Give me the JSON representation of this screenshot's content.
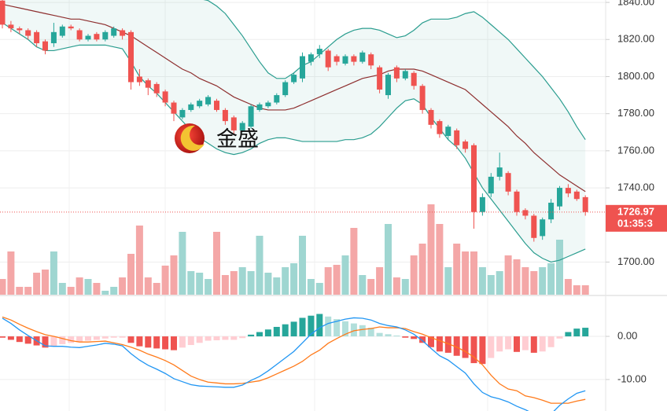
{
  "logo_text": "金盛",
  "chart_data": [
    {
      "type": "candlestick",
      "open": [
        1841,
        1828,
        1826,
        1825,
        1824,
        1819,
        1818,
        1822,
        1827,
        1825,
        1820,
        1823,
        1820,
        1822,
        1825,
        1824,
        1800,
        1798,
        1796,
        1792,
        1786,
        1778,
        1782,
        1784,
        1785,
        1787,
        1782,
        1778,
        1771,
        1773,
        1782,
        1784,
        1786,
        1790,
        1797,
        1799,
        1808,
        1812,
        1814,
        1811,
        1807,
        1811,
        1808,
        1812,
        1805,
        1790,
        1805,
        1799,
        1802,
        1795,
        1782,
        1776,
        1768,
        1771,
        1765,
        1763,
        1727,
        1737,
        1746,
        1748,
        1738,
        1728,
        1725,
        1714,
        1723,
        1730,
        1740,
        1738,
        1735
      ],
      "high": [
        1842,
        1830,
        1827,
        1826,
        1825,
        1820,
        1829,
        1828,
        1828,
        1826,
        1823,
        1824,
        1825,
        1827,
        1826,
        1825,
        1804,
        1799,
        1797,
        1793,
        1787,
        1783,
        1786,
        1788,
        1790,
        1788,
        1783,
        1779,
        1776,
        1785,
        1786,
        1787,
        1791,
        1798,
        1802,
        1813,
        1813,
        1817,
        1815,
        1812,
        1812,
        1812,
        1814,
        1813,
        1806,
        1802,
        1806,
        1804,
        1803,
        1796,
        1783,
        1777,
        1774,
        1772,
        1766,
        1764,
        1737,
        1748,
        1759,
        1749,
        1739,
        1729,
        1726,
        1724,
        1734,
        1741,
        1742,
        1739,
        1736
      ],
      "low": [
        1826,
        1824,
        1823,
        1820,
        1816,
        1812,
        1816,
        1821,
        1825,
        1819,
        1819,
        1819,
        1819,
        1821,
        1820,
        1793,
        1795,
        1790,
        1789,
        1784,
        1776,
        1777,
        1781,
        1783,
        1784,
        1781,
        1774,
        1769,
        1770,
        1772,
        1781,
        1783,
        1785,
        1789,
        1796,
        1797,
        1806,
        1810,
        1803,
        1806,
        1806,
        1806,
        1807,
        1804,
        1791,
        1788,
        1797,
        1798,
        1793,
        1780,
        1772,
        1767,
        1766,
        1761,
        1759,
        1718,
        1725,
        1735,
        1744,
        1736,
        1725,
        1723,
        1711,
        1712,
        1721,
        1728,
        1735,
        1733,
        1725
      ],
      "close": [
        1828,
        1826,
        1825,
        1822,
        1818,
        1814,
        1824,
        1827,
        1826,
        1820,
        1822,
        1820,
        1824,
        1826,
        1822,
        1797,
        1797,
        1794,
        1791,
        1786,
        1780,
        1782,
        1785,
        1787,
        1789,
        1782,
        1776,
        1771,
        1775,
        1784,
        1785,
        1786,
        1790,
        1797,
        1801,
        1811,
        1812,
        1815,
        1805,
        1808,
        1811,
        1808,
        1813,
        1806,
        1793,
        1801,
        1799,
        1803,
        1795,
        1782,
        1774,
        1769,
        1773,
        1763,
        1761,
        1727,
        1735,
        1746,
        1751,
        1738,
        1727,
        1725,
        1713,
        1723,
        1732,
        1740,
        1737,
        1734,
        1726.97
      ],
      "volume": [
        20,
        55,
        10,
        10,
        28,
        32,
        55,
        15,
        10,
        22,
        20,
        15,
        5,
        10,
        22,
        52,
        88,
        22,
        15,
        37,
        50,
        80,
        30,
        28,
        20,
        80,
        25,
        30,
        35,
        30,
        75,
        28,
        22,
        35,
        40,
        75,
        20,
        15,
        35,
        38,
        50,
        85,
        25,
        20,
        35,
        90,
        22,
        20,
        50,
        65,
        115,
        90,
        35,
        65,
        55,
        55,
        35,
        25,
        30,
        50,
        45,
        35,
        30,
        35,
        40,
        70,
        20,
        12,
        12
      ],
      "volume_ylim": [
        0,
        375
      ],
      "bands": {
        "upper": [
          1843,
          1843,
          1843,
          1843,
          1843,
          1843,
          1843,
          1843,
          1843,
          1843,
          1843,
          1843,
          1843,
          1843,
          1843,
          1843,
          1843,
          1843,
          1843,
          1843,
          1843,
          1843,
          1843,
          1842,
          1841,
          1838,
          1834,
          1828,
          1822,
          1815,
          1808,
          1802,
          1799,
          1799,
          1802,
          1806,
          1808,
          1812,
          1816,
          1820,
          1823,
          1825,
          1826,
          1826,
          1825,
          1823,
          1821,
          1822,
          1825,
          1829,
          1831,
          1831,
          1831,
          1832,
          1834,
          1835,
          1832,
          1828,
          1824,
          1820,
          1815,
          1810,
          1805,
          1800,
          1794,
          1788,
          1781,
          1773,
          1766
        ],
        "middle": [
          1839,
          1838,
          1837,
          1836,
          1835,
          1834,
          1833,
          1832,
          1831,
          1831,
          1830,
          1829,
          1828,
          1826,
          1824,
          1822,
          1819,
          1816,
          1813,
          1810,
          1807,
          1804,
          1802,
          1799,
          1797,
          1795,
          1792,
          1789,
          1787,
          1785,
          1783,
          1782,
          1782,
          1782,
          1783,
          1785,
          1787,
          1789,
          1791,
          1793,
          1795,
          1797,
          1799,
          1800,
          1801,
          1803,
          1804,
          1804,
          1804,
          1803,
          1801,
          1799,
          1797,
          1795,
          1793,
          1789,
          1785,
          1781,
          1777,
          1773,
          1768,
          1764,
          1759,
          1755,
          1751,
          1747,
          1744,
          1741,
          1738
        ],
        "lower": [
          1829,
          1826,
          1823,
          1820,
          1816,
          1814,
          1814,
          1815,
          1816,
          1817,
          1817,
          1817,
          1817,
          1816,
          1815,
          1808,
          1800,
          1795,
          1791,
          1786,
          1781,
          1776,
          1771,
          1767,
          1764,
          1761,
          1759,
          1758,
          1759,
          1761,
          1764,
          1766,
          1767,
          1767,
          1766,
          1765,
          1765,
          1765,
          1765,
          1765,
          1766,
          1766,
          1767,
          1769,
          1773,
          1778,
          1783,
          1787,
          1788,
          1785,
          1778,
          1772,
          1766,
          1762,
          1756,
          1748,
          1740,
          1734,
          1728,
          1722,
          1716,
          1710,
          1705,
          1702,
          1700,
          1701,
          1703,
          1705,
          1707
        ]
      },
      "up_color": "#26a69a",
      "down_color": "#ef5350",
      "volume_up_color": "#9fd6d1",
      "volume_down_color": "#f4a7a7",
      "band_color": "#2a9d8f",
      "middle_color": "#8e2f2f",
      "last_time": "01:35:3",
      "ylim": [
        1682.4,
        1841.3
      ],
      "yticks": [
        {
          "value": 1840,
          "label": "1840.00"
        },
        {
          "value": 1820,
          "label": "1820.00"
        },
        {
          "value": 1800,
          "label": "1800.00"
        },
        {
          "value": 1780,
          "label": "1780.00"
        },
        {
          "value": 1760,
          "label": "1760.00"
        },
        {
          "value": 1740,
          "label": "1740.00"
        },
        {
          "value": 1700,
          "label": "1700.00"
        }
      ],
      "grid": true
    },
    {
      "type": "macd",
      "histogram": [
        -0.3,
        -0.8,
        -1.3,
        -1.7,
        -2.1,
        -2.6,
        -2.3,
        -1.8,
        -1.5,
        -1.3,
        -1.0,
        -0.8,
        -0.5,
        -0.3,
        -0.3,
        -1.5,
        -2.3,
        -2.6,
        -2.8,
        -3.0,
        -3.2,
        -2.6,
        -2.0,
        -1.5,
        -1.0,
        -0.9,
        -0.8,
        -0.8,
        -0.4,
        0.4,
        1.0,
        1.6,
        2.2,
        2.8,
        3.4,
        4.3,
        4.8,
        5.2,
        4.6,
        4.0,
        3.5,
        3.0,
        2.6,
        2.0,
        0.8,
        0.5,
        0.2,
        -0.3,
        -0.6,
        -1.5,
        -2.5,
        -3.5,
        -3.8,
        -4.5,
        -5.0,
        -6.2,
        -6.4,
        -5.0,
        -3.5,
        -3.0,
        -3.6,
        -3.2,
        -3.8,
        -3.5,
        -2.5,
        -0.5,
        1.0,
        1.8,
        2.0
      ],
      "macd": [
        4.2,
        3.0,
        1.5,
        0.2,
        -1.0,
        -2.2,
        -2.3,
        -2.3,
        -2.5,
        -2.6,
        -2.3,
        -2.0,
        -1.6,
        -1.8,
        -2.2,
        -4.0,
        -5.5,
        -6.7,
        -7.6,
        -8.6,
        -9.8,
        -10.5,
        -11.2,
        -11.5,
        -11.6,
        -11.7,
        -11.8,
        -11.8,
        -11.3,
        -10.2,
        -9.3,
        -8.0,
        -6.5,
        -5.0,
        -3.5,
        -1.5,
        0.5,
        2.0,
        3.0,
        3.5,
        4.0,
        4.3,
        4.2,
        3.8,
        3.0,
        2.5,
        2.2,
        1.5,
        0.5,
        -1.0,
        -2.8,
        -4.5,
        -5.5,
        -7.0,
        -8.5,
        -11.0,
        -13.0,
        -14.0,
        -14.5,
        -15.2,
        -16.2,
        -17.0,
        -18.0,
        -18.3,
        -18.0,
        -16.0,
        -14.5,
        -13.2,
        -12.6
      ],
      "signal": [
        4.5,
        3.8,
        2.8,
        1.9,
        1.1,
        0.4,
        0.0,
        -0.5,
        -1.0,
        -1.3,
        -1.3,
        -1.2,
        -1.1,
        -1.5,
        -1.9,
        -2.5,
        -3.2,
        -4.1,
        -4.8,
        -5.6,
        -6.6,
        -7.9,
        -9.2,
        -10.0,
        -10.6,
        -10.8,
        -11.0,
        -11.0,
        -10.9,
        -10.6,
        -10.3,
        -9.6,
        -8.7,
        -7.8,
        -6.9,
        -5.8,
        -4.3,
        -3.2,
        -1.6,
        -0.5,
        0.5,
        1.3,
        1.6,
        1.8,
        2.2,
        2.0,
        2.0,
        1.8,
        1.1,
        0.5,
        -0.3,
        -1.0,
        -1.7,
        -2.5,
        -3.5,
        -4.8,
        -6.6,
        -9.0,
        -11.0,
        -12.2,
        -12.6,
        -13.8,
        -14.2,
        -14.8,
        -15.5,
        -15.5,
        -15.5,
        -15.0,
        -14.6
      ],
      "macd_color": "#2196f3",
      "signal_color": "#ff7a1a",
      "hist_colors": [
        "#26a69a",
        "#b2dfdb",
        "#ef5350",
        "#ffcdd2"
      ],
      "ylim": [
        -17.3,
        9.3
      ],
      "yticks": [
        {
          "value": 0,
          "label": "0.00"
        },
        {
          "value": -10,
          "label": "-10.00"
        }
      ]
    }
  ]
}
